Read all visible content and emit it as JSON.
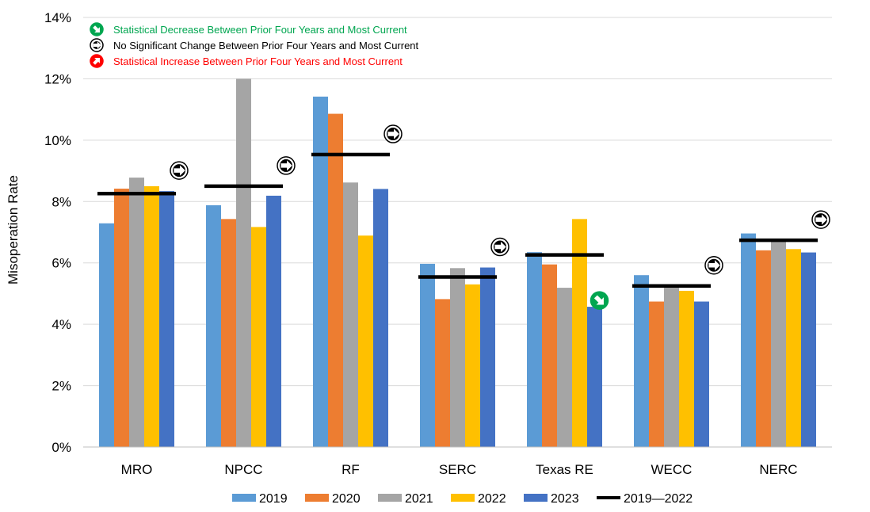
{
  "chart_data": {
    "type": "bar",
    "ylabel": "Misoperation Rate",
    "ylim": [
      0,
      0.14
    ],
    "y_ticks": [
      "0%",
      "2%",
      "4%",
      "6%",
      "8%",
      "10%",
      "12%",
      "14%"
    ],
    "y_tick_values": [
      0,
      0.02,
      0.04,
      0.06,
      0.08,
      0.1,
      0.12,
      0.14
    ],
    "grid": true,
    "legend_position": "bottom",
    "categories": [
      "MRO",
      "NPCC",
      "RF",
      "SERC",
      "Texas RE",
      "WECC",
      "NERC"
    ],
    "series": [
      {
        "name": "2019",
        "color": "#5b9bd5",
        "values": [
          0.0729,
          0.0788,
          0.1142,
          0.0597,
          0.0635,
          0.056,
          0.0696
        ]
      },
      {
        "name": "2020",
        "color": "#ed7d31",
        "values": [
          0.0842,
          0.0743,
          0.1086,
          0.0482,
          0.0595,
          0.0474,
          0.0641
        ]
      },
      {
        "name": "2021",
        "color": "#a5a5a5",
        "values": [
          0.0878,
          0.12,
          0.0862,
          0.0583,
          0.0519,
          0.0522,
          0.0673
        ]
      },
      {
        "name": "2022",
        "color": "#ffc000",
        "values": [
          0.085,
          0.0717,
          0.0689,
          0.053,
          0.0743,
          0.0509,
          0.0645
        ]
      },
      {
        "name": "2023",
        "color": "#4472c4",
        "values": [
          0.0834,
          0.0819,
          0.0841,
          0.0585,
          0.0457,
          0.0474,
          0.0634
        ]
      }
    ],
    "average_series": {
      "name": "2019—2022",
      "color": "#000000",
      "values": [
        0.0826,
        0.085,
        0.0953,
        0.0554,
        0.0626,
        0.0525,
        0.0674
      ]
    },
    "trend_markers": [
      "no-change",
      "no-change",
      "no-change",
      "no-change",
      "decrease",
      "no-change",
      "no-change"
    ],
    "annotation_legend": [
      {
        "key": "decrease",
        "text": "Statistical Decrease Between Prior Four Years and Most Current",
        "color": "#00a650"
      },
      {
        "key": "no-change",
        "text": "No Significant Change Between Prior Four Years and Most Current",
        "color": "#000000"
      },
      {
        "key": "increase",
        "text": "Statistical Increase Between Prior Four Years and Most Current",
        "color": "#ff0000"
      }
    ]
  }
}
